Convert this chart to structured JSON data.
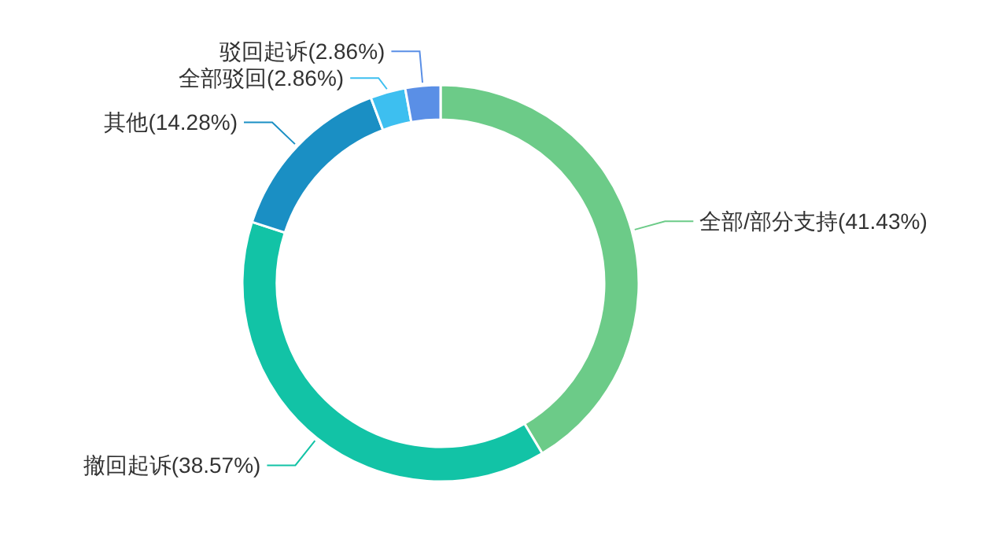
{
  "chart_data": {
    "type": "donut",
    "categories": [
      "全部/部分支持",
      "撤回起诉",
      "其他",
      "全部驳回",
      "驳回起诉"
    ],
    "values": [
      41.43,
      38.57,
      14.28,
      2.86,
      2.86
    ],
    "value_labels": [
      "(41.43%)",
      "(38.57%)",
      "(14.28%)",
      "(2.86%)",
      "(2.86%)"
    ],
    "colors": [
      "#6ccb88",
      "#12c3a6",
      "#1a8fc4",
      "#3dbff0",
      "#5a8fe6"
    ]
  }
}
